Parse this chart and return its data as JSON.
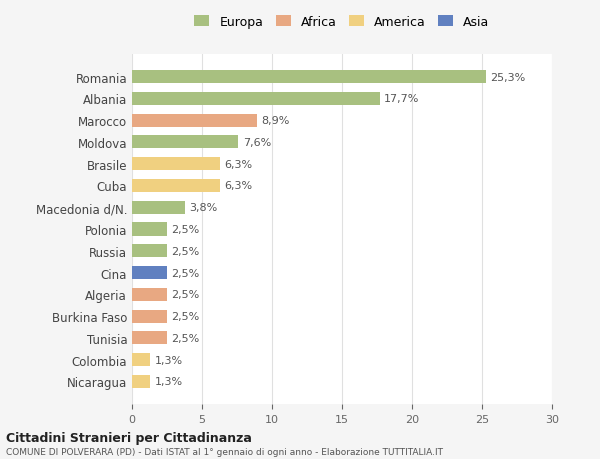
{
  "countries": [
    "Romania",
    "Albania",
    "Marocco",
    "Moldova",
    "Brasile",
    "Cuba",
    "Macedonia d/N.",
    "Polonia",
    "Russia",
    "Cina",
    "Algeria",
    "Burkina Faso",
    "Tunisia",
    "Colombia",
    "Nicaragua"
  ],
  "values": [
    25.3,
    17.7,
    8.9,
    7.6,
    6.3,
    6.3,
    3.8,
    2.5,
    2.5,
    2.5,
    2.5,
    2.5,
    2.5,
    1.3,
    1.3
  ],
  "labels": [
    "25,3%",
    "17,7%",
    "8,9%",
    "7,6%",
    "6,3%",
    "6,3%",
    "3,8%",
    "2,5%",
    "2,5%",
    "2,5%",
    "2,5%",
    "2,5%",
    "2,5%",
    "1,3%",
    "1,3%"
  ],
  "categories": [
    "Europa",
    "Europa",
    "Africa",
    "Europa",
    "America",
    "America",
    "Europa",
    "Europa",
    "Europa",
    "Asia",
    "Africa",
    "Africa",
    "Africa",
    "America",
    "America"
  ],
  "colors": {
    "Europa": "#a8c080",
    "Africa": "#e8a882",
    "America": "#f0d080",
    "Asia": "#6080c0"
  },
  "legend_labels": [
    "Europa",
    "Africa",
    "America",
    "Asia"
  ],
  "legend_colors": [
    "#a8c080",
    "#e8a882",
    "#f0d080",
    "#6080c0"
  ],
  "xlim": [
    0,
    30
  ],
  "xticks": [
    0,
    5,
    10,
    15,
    20,
    25,
    30
  ],
  "title": "Cittadini Stranieri per Cittadinanza",
  "subtitle": "COMUNE DI POLVERARA (PD) - Dati ISTAT al 1° gennaio di ogni anno - Elaborazione TUTTITALIA.IT",
  "background_color": "#f5f5f5",
  "bar_background": "#ffffff",
  "grid_color": "#e0e0e0"
}
